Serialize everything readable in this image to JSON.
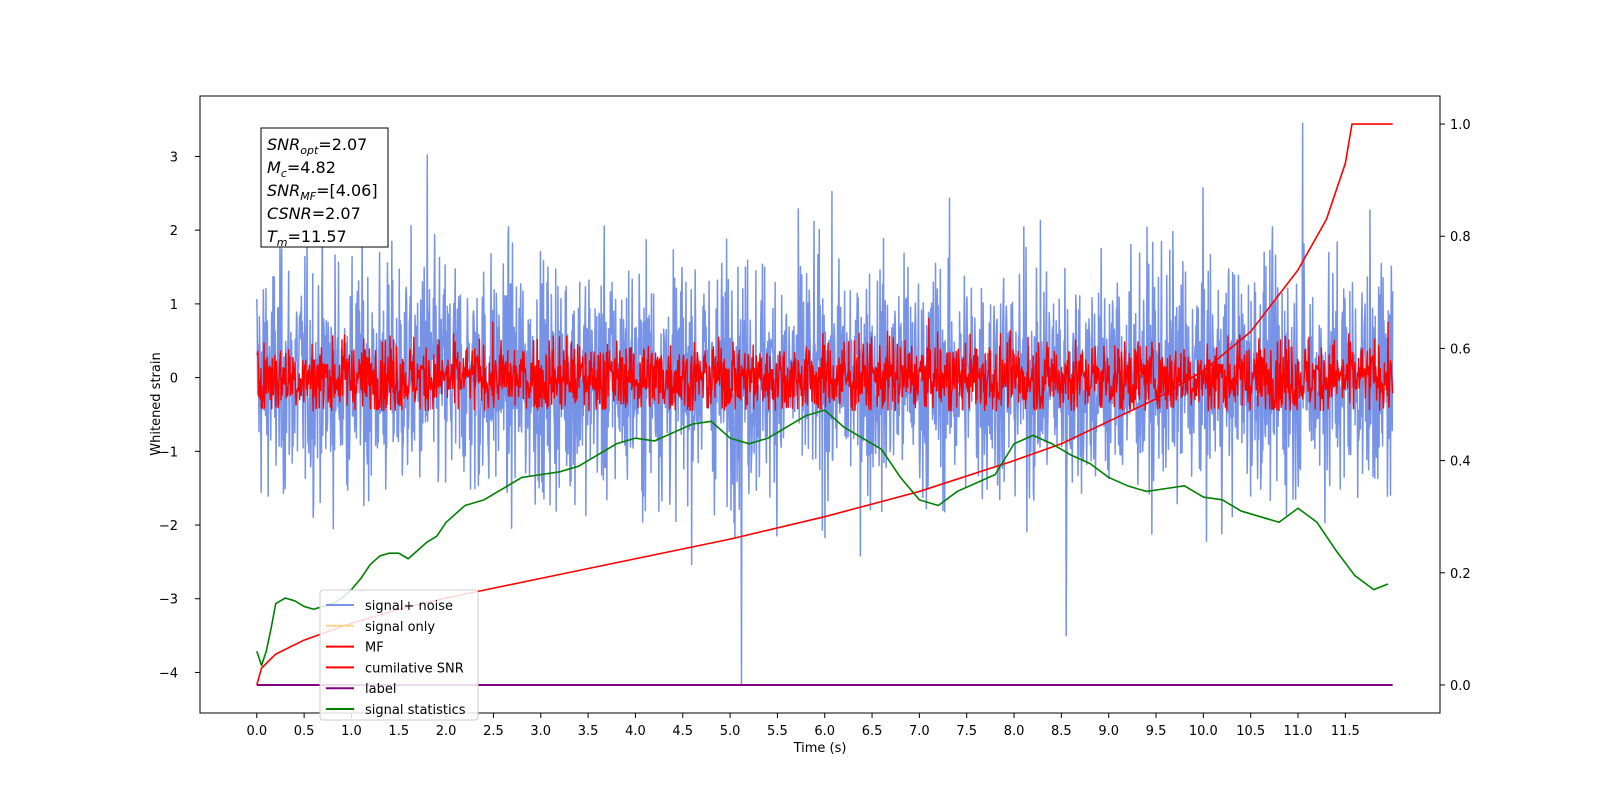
{
  "chart_data": {
    "type": "line",
    "xlabel": "Time (s)",
    "ylabel": "Whitened strain",
    "xlim": [
      -0.6,
      12.5
    ],
    "ylim": [
      -4.55,
      3.82
    ],
    "y2lim": [
      -0.05,
      1.05
    ],
    "x_ticks": [
      0.0,
      0.5,
      1.0,
      1.5,
      2.0,
      2.5,
      3.0,
      3.5,
      4.0,
      4.5,
      5.0,
      5.5,
      6.0,
      6.5,
      7.0,
      7.5,
      8.0,
      8.5,
      9.0,
      9.5,
      10.0,
      10.5,
      11.0,
      11.5
    ],
    "y_ticks": [
      -4,
      -3,
      -2,
      -1,
      0,
      1,
      2,
      3
    ],
    "y2_ticks": [
      0.0,
      0.2,
      0.4,
      0.6,
      0.8,
      1.0
    ],
    "legend": [
      {
        "label": "signal+ noise",
        "color": "#7793e8"
      },
      {
        "label": "signal only",
        "color": "#ffd28c"
      },
      {
        "label": "MF",
        "color": "#ff0000"
      },
      {
        "label": "cumilative SNR",
        "color": "#ff0000"
      },
      {
        "label": "label",
        "color": "#800080"
      },
      {
        "label": "signal statistics",
        "color": "#008000"
      }
    ],
    "legend_position": "lower-left",
    "info_box": [
      {
        "name": "SNR",
        "sub": "opt",
        "value": "=2.07"
      },
      {
        "name": "M",
        "sub": "c",
        "value": "=4.82"
      },
      {
        "name": "SNR",
        "sub": "MF",
        "value": "=[4.06]"
      },
      {
        "name": "CSNR",
        "sub": "",
        "value": "=2.07"
      },
      {
        "name": "T",
        "sub": "m",
        "value": "=11.57"
      }
    ],
    "series": [
      {
        "name": "signal+ noise",
        "color": "#7793e8",
        "axis": "left",
        "x_range": [
          0,
          12.0
        ],
        "approx_std": 0.8,
        "peaks": [
          {
            "x": 11.05,
            "y": 3.45
          },
          {
            "x": 1.8,
            "y": 3.02
          },
          {
            "x": 5.12,
            "y": -4.15
          },
          {
            "x": 8.55,
            "y": -3.5
          }
        ]
      },
      {
        "name": "MF",
        "color": "#ff0000",
        "axis": "left",
        "x_range": [
          0,
          12.0
        ],
        "approx_std": 0.25,
        "range": [
          -0.45,
          0.95
        ]
      },
      {
        "name": "cumilative SNR",
        "color": "#ff0000",
        "axis": "right",
        "x": [
          0.0,
          0.05,
          0.2,
          0.5,
          1.0,
          1.5,
          2.0,
          3.0,
          4.0,
          5.0,
          6.0,
          7.0,
          8.0,
          8.5,
          9.0,
          9.5,
          10.0,
          10.5,
          11.0,
          11.3,
          11.5,
          11.57,
          12.0
        ],
        "y": [
          0.0,
          0.03,
          0.055,
          0.08,
          0.11,
          0.135,
          0.155,
          0.19,
          0.225,
          0.26,
          0.3,
          0.345,
          0.4,
          0.43,
          0.47,
          0.51,
          0.56,
          0.63,
          0.74,
          0.83,
          0.93,
          1.0,
          1.0
        ]
      },
      {
        "name": "label",
        "color": "#800080",
        "axis": "right",
        "x": [
          0.0,
          12.0
        ],
        "y": [
          0.0,
          0.0
        ]
      },
      {
        "name": "signal statistics",
        "color": "#008000",
        "axis": "right",
        "x": [
          0.0,
          0.05,
          0.1,
          0.15,
          0.2,
          0.3,
          0.4,
          0.5,
          0.6,
          0.7,
          0.8,
          0.9,
          1.0,
          1.1,
          1.2,
          1.3,
          1.4,
          1.5,
          1.6,
          1.7,
          1.8,
          1.9,
          2.0,
          2.2,
          2.4,
          2.6,
          2.8,
          3.0,
          3.2,
          3.4,
          3.6,
          3.8,
          4.0,
          4.2,
          4.4,
          4.6,
          4.8,
          5.0,
          5.2,
          5.4,
          5.6,
          5.8,
          6.0,
          6.2,
          6.4,
          6.6,
          6.8,
          7.0,
          7.2,
          7.4,
          7.6,
          7.8,
          8.0,
          8.2,
          8.4,
          8.6,
          8.8,
          9.0,
          9.2,
          9.4,
          9.6,
          9.8,
          10.0,
          10.2,
          10.4,
          10.6,
          10.8,
          11.0,
          11.2,
          11.4,
          11.6,
          11.8,
          11.95
        ],
        "y": [
          0.06,
          0.035,
          0.06,
          0.1,
          0.145,
          0.155,
          0.15,
          0.14,
          0.135,
          0.14,
          0.145,
          0.155,
          0.17,
          0.19,
          0.215,
          0.23,
          0.235,
          0.235,
          0.225,
          0.24,
          0.255,
          0.265,
          0.29,
          0.32,
          0.33,
          0.35,
          0.37,
          0.375,
          0.38,
          0.39,
          0.41,
          0.43,
          0.44,
          0.435,
          0.45,
          0.465,
          0.47,
          0.44,
          0.43,
          0.44,
          0.46,
          0.48,
          0.49,
          0.46,
          0.44,
          0.42,
          0.37,
          0.33,
          0.32,
          0.345,
          0.36,
          0.375,
          0.43,
          0.445,
          0.43,
          0.41,
          0.395,
          0.37,
          0.355,
          0.345,
          0.35,
          0.355,
          0.335,
          0.33,
          0.31,
          0.3,
          0.29,
          0.315,
          0.29,
          0.24,
          0.195,
          0.17,
          0.18
        ]
      }
    ]
  }
}
